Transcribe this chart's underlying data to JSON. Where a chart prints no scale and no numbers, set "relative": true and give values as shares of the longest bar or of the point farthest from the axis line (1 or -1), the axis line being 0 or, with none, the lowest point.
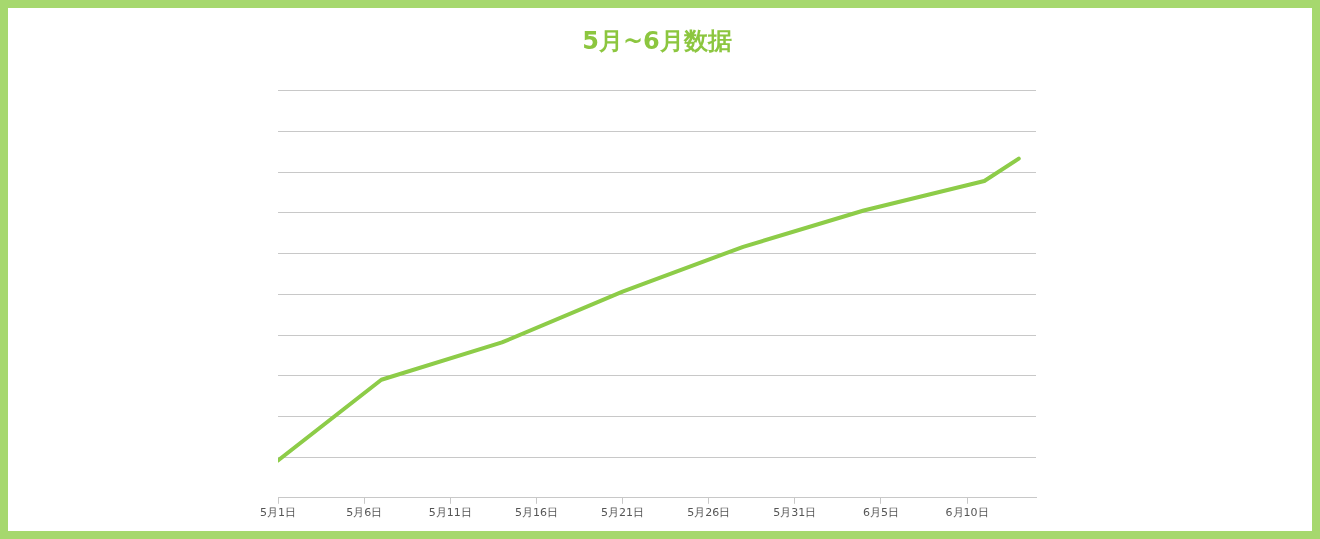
{
  "chart_data": {
    "type": "line",
    "title": "5月~6月数据",
    "relative": true,
    "x": [
      "--05-01",
      "--05-07",
      "--05-14",
      "--05-21",
      "--05-28",
      "--06-04",
      "--06-11",
      "--06-13"
    ],
    "series": [
      {
        "color": "#8dcc48",
        "values": [
          0.11,
          0.348,
          0.458,
          0.608,
          0.74,
          0.847,
          0.934,
          1
        ]
      }
    ],
    "xlim": [
      "--05-01",
      "--06-14"
    ],
    "xticks": [
      {
        "value": "--05-01",
        "label": "5月1日"
      },
      {
        "value": "--05-06",
        "label": "5月6日"
      },
      {
        "value": "--05-11",
        "label": "5月11日"
      },
      {
        "value": "--05-16",
        "label": "5月16日"
      },
      {
        "value": "--05-21",
        "label": "5月21日"
      },
      {
        "value": "--05-26",
        "label": "5月26日"
      },
      {
        "value": "--05-31",
        "label": "5月31日"
      },
      {
        "value": "--06-05",
        "label": "6月5日"
      },
      {
        "value": "--06-10",
        "label": "6月10日"
      }
    ],
    "grid": "y",
    "legend": false,
    "marker": "none",
    "line_style": "solid"
  }
}
